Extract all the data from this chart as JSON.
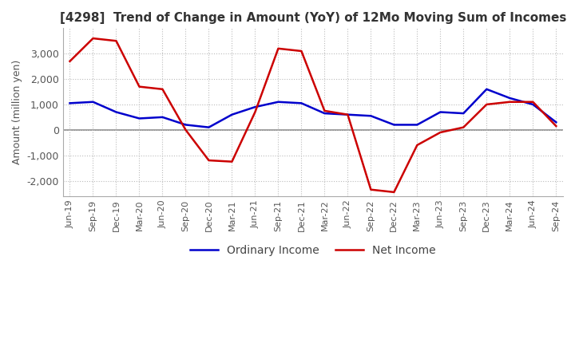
{
  "title": "[4298]  Trend of Change in Amount (YoY) of 12Mo Moving Sum of Incomes",
  "ylabel": "Amount (million yen)",
  "x_labels": [
    "Jun-19",
    "Sep-19",
    "Dec-19",
    "Mar-20",
    "Jun-20",
    "Sep-20",
    "Dec-20",
    "Mar-21",
    "Jun-21",
    "Sep-21",
    "Dec-21",
    "Mar-22",
    "Jun-22",
    "Sep-22",
    "Dec-22",
    "Mar-23",
    "Jun-23",
    "Sep-23",
    "Dec-23",
    "Mar-24",
    "Jun-24",
    "Sep-24"
  ],
  "ordinary_income": [
    1050,
    1100,
    700,
    450,
    500,
    200,
    100,
    600,
    900,
    1100,
    1050,
    650,
    600,
    550,
    200,
    200,
    700,
    650,
    1600,
    1250,
    1000,
    300
  ],
  "net_income": [
    2700,
    3600,
    3500,
    1700,
    1600,
    0,
    -1200,
    -1250,
    700,
    3200,
    3100,
    750,
    600,
    -2350,
    -2450,
    -600,
    -100,
    100,
    1000,
    1100,
    1100,
    150
  ],
  "ordinary_color": "#0000cc",
  "net_color": "#cc0000",
  "background_color": "#ffffff",
  "grid_color": "#bbbbbb",
  "zero_line_color": "#888888",
  "ylim": [
    -2600,
    4000
  ],
  "yticks": [
    -2000,
    -1000,
    0,
    1000,
    2000,
    3000
  ],
  "title_color": "#333333",
  "legend_labels": [
    "Ordinary Income",
    "Net Income"
  ]
}
